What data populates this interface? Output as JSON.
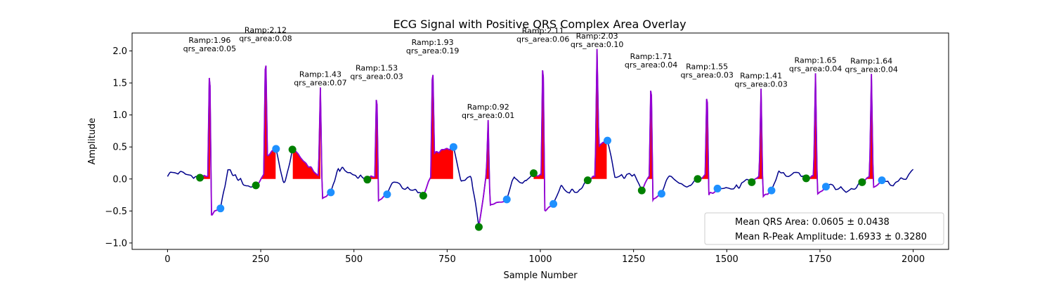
{
  "chart_data": {
    "type": "line",
    "title": "ECG Signal with Positive QRS Complex Area Overlay",
    "xlabel": "Sample Number",
    "ylabel": "Amplitude",
    "xlim": [
      -95,
      2095
    ],
    "ylim": [
      -1.1,
      2.28
    ],
    "xticks": [
      0,
      250,
      500,
      750,
      1000,
      1250,
      1500,
      1750,
      2000
    ],
    "yticks": [
      -1.0,
      -0.5,
      0.0,
      0.5,
      1.0,
      1.5,
      2.0
    ],
    "ytick_labels": [
      "−1.0",
      "−0.5",
      "0.0",
      "0.5",
      "1.0",
      "1.5",
      "2.0"
    ],
    "grid": false,
    "colors": {
      "signal": "#00008b",
      "qrs_segment": "#9400d3",
      "area_fill": "#ff0000",
      "onset_marker": "#008000",
      "offset_marker": "#1e90ff"
    },
    "beats": [
      {
        "onset": [
          87,
          0.02
        ],
        "peak": [
          113,
          1.96
        ],
        "offset": [
          142,
          -0.46
        ],
        "ramp": "1.96",
        "area": "0.05",
        "fill_end": 115
      },
      {
        "onset": [
          237,
          -0.1
        ],
        "peak": [
          263,
          2.12
        ],
        "offset": [
          291,
          0.47
        ],
        "ramp": "2.12",
        "area": "0.08",
        "fill_end": 290
      },
      {
        "onset": [
          335,
          0.46
        ],
        "peak": [
          410,
          1.43
        ],
        "offset": [
          438,
          -0.21
        ],
        "ramp": "1.43",
        "area": "0.07",
        "fill_end": 410
      },
      {
        "onset": [
          536,
          -0.01
        ],
        "peak": [
          561,
          1.53
        ],
        "offset": [
          589,
          -0.24
        ],
        "ramp": "1.53",
        "area": "0.03",
        "fill_end": 575
      },
      {
        "onset": [
          686,
          -0.26
        ],
        "peak": [
          711,
          1.93
        ],
        "offset": [
          767,
          0.5
        ],
        "ramp": "1.93",
        "area": "0.19",
        "fill_end": 767
      },
      {
        "onset": [
          835,
          -0.75
        ],
        "peak": [
          860,
          0.92
        ],
        "offset": [
          910,
          -0.32
        ],
        "ramp": "0.92",
        "area": "0.01",
        "fill_end": 862
      },
      {
        "onset": [
          982,
          0.09
        ],
        "peak": [
          1007,
          2.11
        ],
        "offset": [
          1035,
          -0.39
        ],
        "ramp": "2.11",
        "area": "0.06",
        "fill_end": 1015
      },
      {
        "onset": [
          1127,
          -0.02
        ],
        "peak": [
          1152,
          2.03
        ],
        "offset": [
          1180,
          0.6
        ],
        "ramp": "2.03",
        "area": "0.10",
        "fill_end": 1178
      },
      {
        "onset": [
          1272,
          -0.18
        ],
        "peak": [
          1297,
          1.71
        ],
        "offset": [
          1325,
          -0.23
        ],
        "ramp": "1.71",
        "area": "0.04",
        "fill_end": 1303
      },
      {
        "onset": [
          1422,
          0.0
        ],
        "peak": [
          1447,
          1.55
        ],
        "offset": [
          1475,
          -0.15
        ],
        "ramp": "1.55",
        "area": "0.03",
        "fill_end": 1452
      },
      {
        "onset": [
          1567,
          -0.05
        ],
        "peak": [
          1592,
          1.41
        ],
        "offset": [
          1620,
          -0.18
        ],
        "ramp": "1.41",
        "area": "0.03",
        "fill_end": 1597
      },
      {
        "onset": [
          1713,
          0.01
        ],
        "peak": [
          1738,
          1.65
        ],
        "offset": [
          1766,
          -0.12
        ],
        "ramp": "1.65",
        "area": "0.04",
        "fill_end": 1743
      },
      {
        "onset": [
          1863,
          -0.05
        ],
        "peak": [
          1888,
          1.64
        ],
        "offset": [
          1916,
          -0.02
        ],
        "ramp": "1.64",
        "area": "0.04",
        "fill_end": 1895
      }
    ],
    "legend": {
      "placement": "lower-right",
      "entries": [
        "Mean QRS Area: 0.0605 ± 0.0438",
        "Mean R-Peak Amplitude: 1.6933 ± 0.3280"
      ]
    }
  }
}
